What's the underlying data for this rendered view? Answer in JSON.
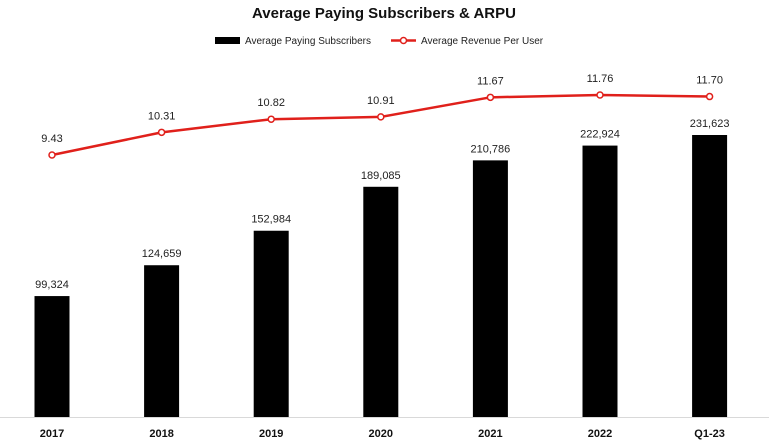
{
  "chart_data": {
    "type": "bar",
    "title": "Average Paying Subscribers & ARPU",
    "categories": [
      "2017",
      "2018",
      "2019",
      "2020",
      "2021",
      "2022",
      "Q1-23"
    ],
    "series": [
      {
        "name": "Average Paying Subscribers",
        "type": "bar",
        "color": "#000000",
        "values": [
          99324,
          124659,
          152984,
          189085,
          210786,
          222924,
          231623
        ],
        "labels": [
          "99,324",
          "124,659",
          "152,984",
          "189,085",
          "210,786",
          "222,924",
          "231,623"
        ]
      },
      {
        "name": "Average Revenue Per User",
        "type": "line",
        "color": "#e0201b",
        "values": [
          9.43,
          10.31,
          10.82,
          10.91,
          11.67,
          11.76,
          11.7
        ],
        "labels": [
          "9.43",
          "10.31",
          "10.82",
          "10.91",
          "11.67",
          "11.76",
          "11.70"
        ]
      }
    ],
    "xlabel": "",
    "ylabel": "",
    "legend": "top-center",
    "grid": false,
    "y_axis_visible": false
  }
}
